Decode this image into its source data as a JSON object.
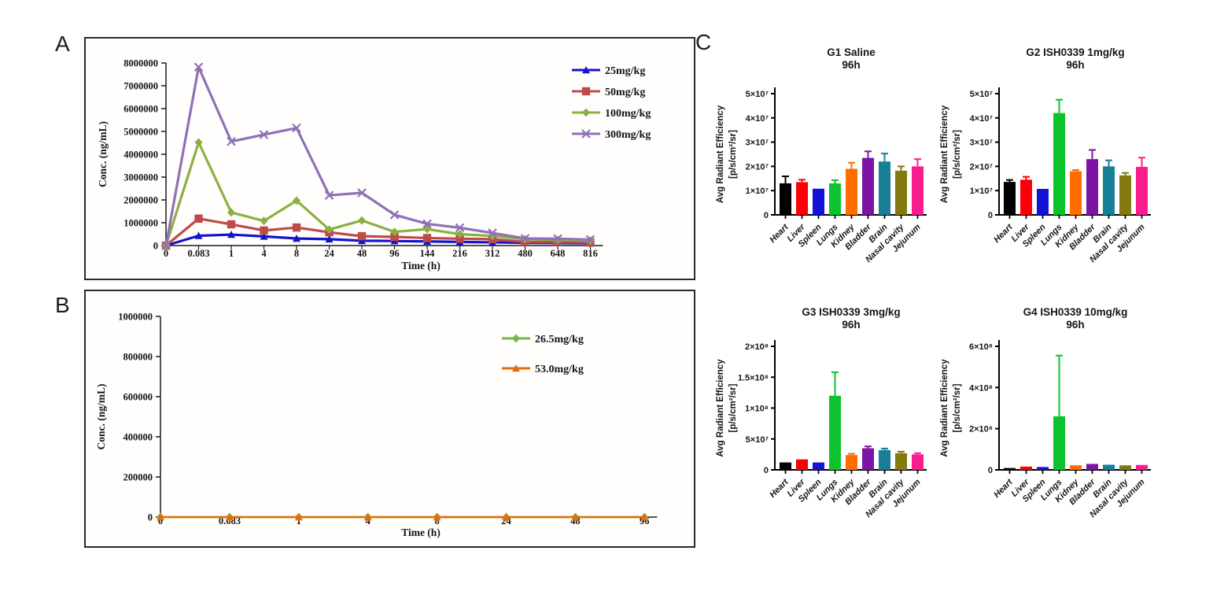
{
  "panel_letters": {
    "a": "A",
    "b": "B",
    "c": "C"
  },
  "organ_colors": [
    "#000000",
    "#fb0007",
    "#1313d8",
    "#0cc32d",
    "#ff6c00",
    "#7c15a5",
    "#187f96",
    "#837a10",
    "#fb1d8d"
  ],
  "chart_data": [
    {
      "id": "panelA",
      "type": "line",
      "title": "",
      "xlabel": "Time (h)",
      "ylabel": "Conc. (ng/mL)",
      "ylim": [
        0,
        8000000
      ],
      "grid": false,
      "legend_position": "top-right",
      "yticks": [
        {
          "value": 0,
          "label": "0"
        },
        {
          "value": 1000000,
          "label": "1000000"
        },
        {
          "value": 2000000,
          "label": "2000000"
        },
        {
          "value": 3000000,
          "label": "3000000"
        },
        {
          "value": 4000000,
          "label": "4000000"
        },
        {
          "value": 5000000,
          "label": "5000000"
        },
        {
          "value": 6000000,
          "label": "6000000"
        },
        {
          "value": 7000000,
          "label": "7000000"
        },
        {
          "value": 8000000,
          "label": "8000000"
        }
      ],
      "categories": [
        "0",
        "0.083",
        "1",
        "4",
        "8",
        "24",
        "48",
        "96",
        "144",
        "216",
        "312",
        "480",
        "648",
        "816"
      ],
      "series": [
        {
          "name": "25mg/kg",
          "color": "#1414cc",
          "marker": "triangle",
          "values": [
            0,
            430000,
            480000,
            400000,
            310000,
            280000,
            210000,
            200000,
            180000,
            160000,
            140000,
            120000,
            110000,
            100000
          ]
        },
        {
          "name": "50mg/kg",
          "color": "#be4b48",
          "marker": "square",
          "values": [
            0,
            1180000,
            930000,
            660000,
            790000,
            580000,
            410000,
            380000,
            330000,
            300000,
            280000,
            160000,
            150000,
            130000
          ]
        },
        {
          "name": "100mg/kg",
          "color": "#8cb03f",
          "marker": "diamond",
          "values": [
            0,
            4520000,
            1450000,
            1080000,
            1970000,
            700000,
            1100000,
            600000,
            720000,
            500000,
            420000,
            280000,
            250000,
            220000
          ]
        },
        {
          "name": "300mg/kg",
          "color": "#9070b8",
          "marker": "x",
          "values": [
            0,
            7820000,
            4560000,
            4860000,
            5150000,
            2200000,
            2310000,
            1350000,
            950000,
            780000,
            550000,
            310000,
            300000,
            260000
          ]
        }
      ]
    },
    {
      "id": "panelB",
      "type": "line",
      "title": "",
      "xlabel": "Time (h)",
      "ylabel": "Conc. (ng/mL)",
      "ylim": [
        0,
        1000000
      ],
      "grid": false,
      "legend_position": "top-center",
      "yticks": [
        {
          "value": 0,
          "label": "0"
        },
        {
          "value": 200000,
          "label": "200000"
        },
        {
          "value": 400000,
          "label": "400000"
        },
        {
          "value": 600000,
          "label": "600000"
        },
        {
          "value": 800000,
          "label": "800000"
        },
        {
          "value": 1000000,
          "label": "1000000"
        }
      ],
      "categories": [
        "0",
        "0.083",
        "1",
        "4",
        "8",
        "24",
        "48",
        "96"
      ],
      "series": [
        {
          "name": "26.5mg/kg",
          "color": "#7ab648",
          "marker": "diamond",
          "values": [
            0,
            0,
            0,
            0,
            0,
            0,
            0,
            0
          ]
        },
        {
          "name": "53.0mg/kg",
          "color": "#e46c0a",
          "marker": "triangle",
          "values": [
            0,
            0,
            0,
            0,
            0,
            0,
            0,
            0
          ]
        }
      ]
    },
    {
      "id": "g1",
      "type": "bar",
      "title": "G1 Saline",
      "subtitle": "96h",
      "ylabel_line1": "Avg Radiant Efficiency",
      "ylabel_line2": "[p/s/cm²/sr]",
      "ymax": 50000000,
      "yticks": [
        {
          "value": 0,
          "label": "0"
        },
        {
          "value": 10000000,
          "label": "1×10⁷"
        },
        {
          "value": 20000000,
          "label": "2×10⁷"
        },
        {
          "value": 30000000,
          "label": "3×10⁷"
        },
        {
          "value": 40000000,
          "label": "4×10⁷"
        },
        {
          "value": 50000000,
          "label": "5×10⁷"
        }
      ],
      "categories": [
        "Heart",
        "Liver",
        "Spleen",
        "Lungs",
        "Kidney",
        "Bladder",
        "Brain",
        "Nasal cavity",
        "Jejunum"
      ],
      "values": [
        13000000,
        13500000,
        10800000,
        13000000,
        19000000,
        23500000,
        22000000,
        18200000,
        20000000
      ],
      "errors": [
        2900000,
        1000000,
        400000,
        1300000,
        2500000,
        2700000,
        3300000,
        1800000,
        3000000
      ]
    },
    {
      "id": "g2",
      "type": "bar",
      "title": "G2 ISH0339 1mg/kg",
      "subtitle": "96h",
      "ylabel_line1": "Avg Radiant Efficiency",
      "ylabel_line2": "[p/s/cm²/sr]",
      "ymax": 50000000,
      "yticks": [
        {
          "value": 0,
          "label": "0"
        },
        {
          "value": 10000000,
          "label": "1×10⁷"
        },
        {
          "value": 20000000,
          "label": "2×10⁷"
        },
        {
          "value": 30000000,
          "label": "3×10⁷"
        },
        {
          "value": 40000000,
          "label": "4×10⁷"
        },
        {
          "value": 50000000,
          "label": "5×10⁷"
        }
      ],
      "categories": [
        "Heart",
        "Liver",
        "Spleen",
        "Lungs",
        "Kidney",
        "Bladder",
        "Brain",
        "Nasal cavity",
        "Jejunum"
      ],
      "values": [
        13600000,
        14500000,
        10700000,
        42000000,
        18000000,
        23000000,
        20000000,
        16300000,
        19800000
      ],
      "errors": [
        800000,
        1200000,
        300000,
        5500000,
        500000,
        3800000,
        2500000,
        1000000,
        3800000
      ]
    },
    {
      "id": "g3",
      "type": "bar",
      "title": "G3 ISH0339 3mg/kg",
      "subtitle": "96h",
      "ylabel_line1": "Avg Radiant Efficiency",
      "ylabel_line2": "[p/s/cm²/sr]",
      "ymax": 200000000,
      "yticks": [
        {
          "value": 0,
          "label": "0"
        },
        {
          "value": 50000000,
          "label": "5×10⁷"
        },
        {
          "value": 100000000,
          "label": "1×10⁸"
        },
        {
          "value": 150000000,
          "label": "1.5×10⁸"
        },
        {
          "value": 200000000,
          "label": "2×10⁸"
        }
      ],
      "categories": [
        "Heart",
        "Liver",
        "Spleen",
        "Lungs",
        "Kidney",
        "Bladder",
        "Brain",
        "Nasal cavity",
        "Jejunum"
      ],
      "values": [
        12000000,
        17000000,
        12000000,
        120000000,
        24000000,
        35000000,
        32000000,
        27000000,
        25000000
      ],
      "errors": [
        1000000,
        1500000,
        1000000,
        38000000,
        2000000,
        3000000,
        2500000,
        2500000,
        2000000
      ]
    },
    {
      "id": "g4",
      "type": "bar",
      "title": "G4 ISH0339 10mg/kg",
      "subtitle": "96h",
      "ylabel_line1": "Avg Radiant Efficiency",
      "ylabel_line2": "[p/s/cm²/sr]",
      "ymax": 600000000,
      "yticks": [
        {
          "value": 0,
          "label": "0"
        },
        {
          "value": 200000000,
          "label": "2×10⁸"
        },
        {
          "value": 400000000,
          "label": "4×10⁸"
        },
        {
          "value": 600000000,
          "label": "6×10⁸"
        }
      ],
      "categories": [
        "Heart",
        "Liver",
        "Spleen",
        "Lungs",
        "Kidney",
        "Bladder",
        "Brain",
        "Nasal cavity",
        "Jejunum"
      ],
      "values": [
        9000000,
        16000000,
        14000000,
        260000000,
        22000000,
        29000000,
        25000000,
        22000000,
        24000000
      ],
      "errors": [
        2000000,
        3000000,
        3000000,
        295000000,
        3000000,
        4000000,
        3000000,
        3000000,
        3000000
      ]
    }
  ]
}
